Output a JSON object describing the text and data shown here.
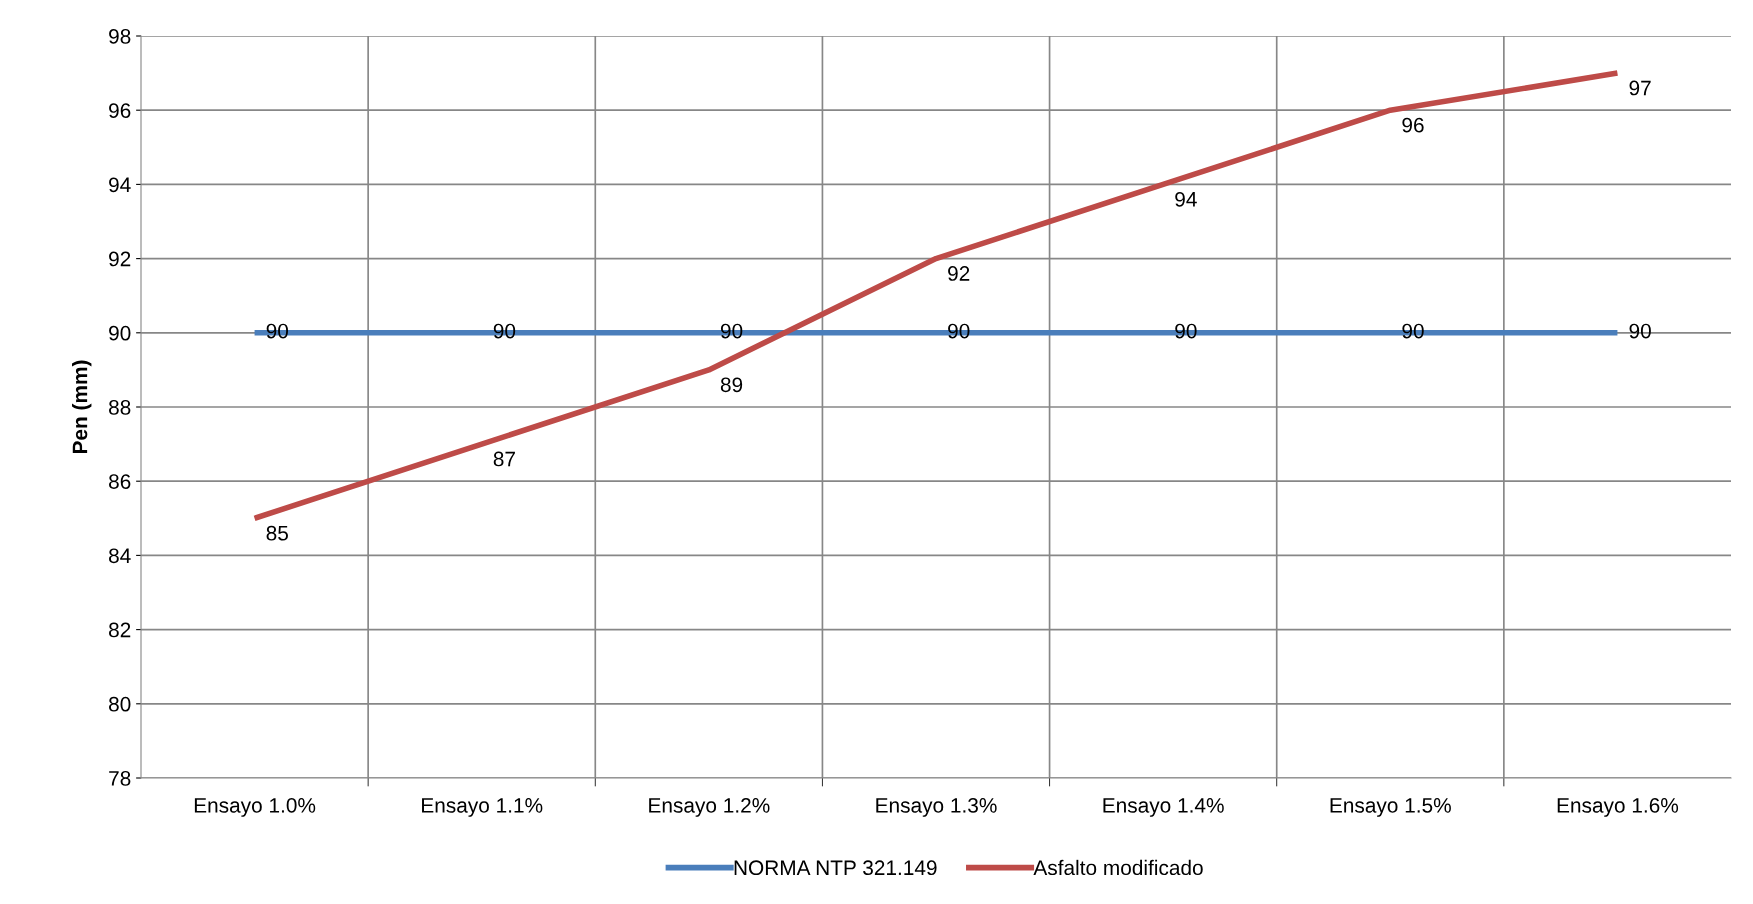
{
  "chart_data": {
    "type": "line",
    "ylabel": "Pen (mm)",
    "categories": [
      "Ensayo 1.0%",
      "Ensayo 1.1%",
      "Ensayo 1.2%",
      "Ensayo 1.3%",
      "Ensayo 1.4%",
      "Ensayo 1.5%",
      "Ensayo 1.6%"
    ],
    "series": [
      {
        "name": "NORMA NTP 321.149",
        "color": "#4a7ebb",
        "values": [
          90,
          90,
          90,
          90,
          90,
          90,
          90
        ]
      },
      {
        "name": "Asfalto modificado",
        "color": "#be4b48",
        "values": [
          85,
          87,
          89,
          92,
          94,
          96,
          97
        ]
      }
    ],
    "ylim": [
      78,
      98
    ],
    "yticks": [
      78,
      80,
      82,
      84,
      86,
      88,
      90,
      92,
      94,
      96,
      98
    ],
    "grid": true,
    "legend": "bottom",
    "data_labels": true,
    "marker": "none",
    "line_style": "solid"
  }
}
